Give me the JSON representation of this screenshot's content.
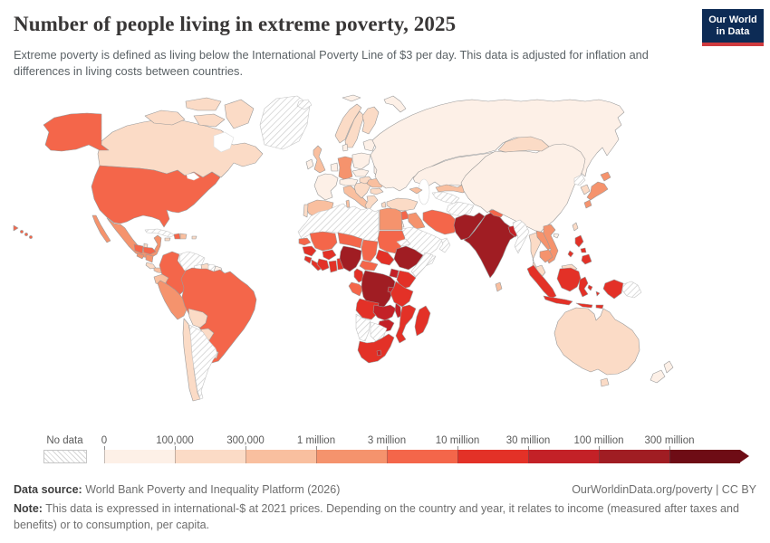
{
  "header": {
    "title": "Number of people living in extreme poverty, 2025",
    "subtitle": "Extreme poverty is defined as living below the International Poverty Line of $3 per day. This data is adjusted for inflation and differences in living costs between countries.",
    "logo": {
      "line1": "Our World",
      "line2": "in Data",
      "bg": "#0d2b55",
      "stripe": "#cf3a3e"
    }
  },
  "chart_data": {
    "type": "choropleth",
    "title": "Number of people living in extreme poverty, 2025",
    "unit": "people",
    "legend": {
      "no_data_label": "No data",
      "boundary_labels": [
        "0",
        "100,000",
        "300,000",
        "1 million",
        "3 million",
        "10 million",
        "30 million",
        "100 million",
        "300 million"
      ],
      "bin_colors": [
        "#fdf0e7",
        "#fbdbc6",
        "#f9bf9f",
        "#f5936d",
        "#f4664a",
        "#e33127",
        "#c32127",
        "#a01d23",
        "#6e0c15"
      ],
      "border_color": "#9a9a9a",
      "no_data_border": "#c5c5c5"
    },
    "countries": [
      [
        "Greenland",
        "no_data"
      ],
      [
        "Canada",
        1
      ],
      [
        "United States",
        4
      ],
      [
        "Mexico",
        3
      ],
      [
        "Guatemala",
        4
      ],
      [
        "Belize",
        1
      ],
      [
        "Honduras",
        4
      ],
      [
        "El Salvador",
        3
      ],
      [
        "Nicaragua",
        3
      ],
      [
        "Costa Rica",
        1
      ],
      [
        "Panama",
        2
      ],
      [
        "Cuba",
        "no_data"
      ],
      [
        "Jamaica",
        1
      ],
      [
        "Haiti",
        4
      ],
      [
        "Dominican Republic",
        2
      ],
      [
        "Puerto Rico",
        1
      ],
      [
        "Colombia",
        4
      ],
      [
        "Venezuela",
        "no_data"
      ],
      [
        "Guyana",
        1
      ],
      [
        "Suriname",
        "no_data"
      ],
      [
        "French Guiana",
        0
      ],
      [
        "Ecuador",
        2
      ],
      [
        "Peru",
        3
      ],
      [
        "Brazil",
        4
      ],
      [
        "Bolivia",
        1
      ],
      [
        "Paraguay",
        1
      ],
      [
        "Uruguay",
        1
      ],
      [
        "Chile",
        1
      ],
      [
        "Argentina",
        "no_data"
      ],
      [
        "Iceland",
        "no_data"
      ],
      [
        "Svalbard",
        0
      ],
      [
        "Norway",
        1
      ],
      [
        "Sweden",
        1
      ],
      [
        "Finland",
        1
      ],
      [
        "Denmark",
        0
      ],
      [
        "United Kingdom",
        2
      ],
      [
        "Ireland",
        0
      ],
      [
        "France",
        0
      ],
      [
        "Benelux",
        0
      ],
      [
        "Germany",
        3
      ],
      [
        "Poland",
        0
      ],
      [
        "Czechia & Slovakia",
        0
      ],
      [
        "Austria & Switzerland",
        0
      ],
      [
        "Italy",
        2
      ],
      [
        "Spain",
        2
      ],
      [
        "Portugal",
        1
      ],
      [
        "Balkans",
        1
      ],
      [
        "Hungary",
        1
      ],
      [
        "Romania",
        2
      ],
      [
        "Bulgaria",
        1
      ],
      [
        "Greece",
        1
      ],
      [
        "Ukraine",
        0
      ],
      [
        "Belarus",
        0
      ],
      [
        "Baltics",
        0
      ],
      [
        "Russia",
        0
      ],
      [
        "Kazakhstan",
        0
      ],
      [
        "Uzbekistan",
        2
      ],
      [
        "Turkmenistan",
        "no_data"
      ],
      [
        "Kyrgyzstan",
        2
      ],
      [
        "Tajikistan",
        3
      ],
      [
        "Afghanistan",
        "no_data"
      ],
      [
        "Caucasus",
        2
      ],
      [
        "Turkey",
        1
      ],
      [
        "Syria",
        4
      ],
      [
        "Iraq",
        3
      ],
      [
        "Iran",
        4
      ],
      [
        "Jordan & Israel",
        0
      ],
      [
        "Saudi Arabia",
        "no_data"
      ],
      [
        "Yemen",
        "no_data"
      ],
      [
        "Oman",
        "no_data"
      ],
      [
        "Egypt",
        3
      ],
      [
        "North Africa",
        "no_data"
      ],
      [
        "Senegal",
        4
      ],
      [
        "Mali",
        4
      ],
      [
        "Burkina Faso",
        5
      ],
      [
        "Niger",
        4
      ],
      [
        "Chad",
        4
      ],
      [
        "Sudan",
        4
      ],
      [
        "Eritrea",
        "no_data"
      ],
      [
        "Ethiopia",
        7
      ],
      [
        "Somalia",
        "no_data"
      ],
      [
        "South Sudan",
        5
      ],
      [
        "Central African Republic",
        4
      ],
      [
        "Guinea",
        5
      ],
      [
        "Sierra Leone",
        5
      ],
      [
        "Liberia",
        5
      ],
      [
        "Cote d'Ivoire",
        5
      ],
      [
        "Ghana",
        5
      ],
      [
        "Togo & Benin",
        5
      ],
      [
        "Nigeria",
        7
      ],
      [
        "Cameroon",
        5
      ],
      [
        "Congo & Gabon",
        4
      ],
      [
        "DR Congo",
        7
      ],
      [
        "Uganda",
        6
      ],
      [
        "Kenya",
        5
      ],
      [
        "Rwanda & Burundi",
        6
      ],
      [
        "Tanzania",
        5
      ],
      [
        "Angola",
        5
      ],
      [
        "Zambia",
        6
      ],
      [
        "Malawi",
        6
      ],
      [
        "Mozambique",
        5
      ],
      [
        "Zimbabwe",
        6
      ],
      [
        "Madagascar",
        5
      ],
      [
        "Namibia",
        "no_data"
      ],
      [
        "Botswana",
        "no_data"
      ],
      [
        "South Africa",
        5
      ],
      [
        "Lesotho",
        6
      ],
      [
        "Pakistan",
        7
      ],
      [
        "India",
        7
      ],
      [
        "Nepal",
        4
      ],
      [
        "Bangladesh",
        6
      ],
      [
        "Sri Lanka",
        2
      ],
      [
        "Myanmar",
        "no_data"
      ],
      [
        "Thailand",
        1
      ],
      [
        "Laos",
        3
      ],
      [
        "Vietnam",
        3
      ],
      [
        "Cambodia",
        3
      ],
      [
        "Malaysia",
        1
      ],
      [
        "China",
        0
      ],
      [
        "Mongolia",
        1
      ],
      [
        "North Korea",
        "no_data"
      ],
      [
        "South Korea",
        1
      ],
      [
        "Japan",
        3
      ],
      [
        "Taiwan",
        1
      ],
      [
        "Philippines",
        5
      ],
      [
        "Indonesia",
        5
      ],
      [
        "Papua New Guinea",
        "no_data"
      ],
      [
        "Australia",
        1
      ],
      [
        "New Zealand",
        0
      ],
      [
        "Fiji",
        4
      ]
    ]
  },
  "footer": {
    "source_label": "Data source:",
    "source_value": " World Bank Poverty and Inequality Platform (2026)",
    "credit": "OurWorldinData.org/poverty | CC BY",
    "note_label": "Note:",
    "note_value": " This data is expressed in international-$ at 2021 prices. Depending on the country and year, it relates to income (measured after taxes and benefits) or to consumption, per capita."
  }
}
